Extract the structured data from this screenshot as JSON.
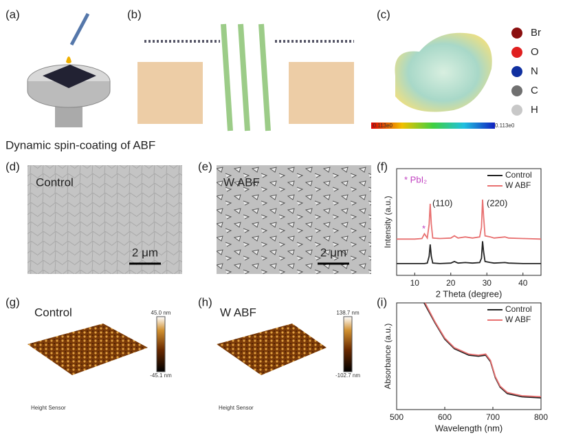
{
  "panels": {
    "a": {
      "label": "(a)",
      "caption": "Dynamic spin-coating of ABF"
    },
    "b": {
      "label": "(b)"
    },
    "c": {
      "label": "(c)",
      "atoms": [
        "Br",
        "O",
        "N",
        "C",
        "H"
      ],
      "atom_colors": [
        "#8b1010",
        "#e02020",
        "#1030a0",
        "#707070",
        "#c8c8c8"
      ],
      "scale_min": "-0.113e0",
      "scale_max": "0.113e0"
    },
    "d": {
      "label": "(d)",
      "title": "Control",
      "scale_bar": "2 μm"
    },
    "e": {
      "label": "(e)",
      "title": "W ABF",
      "scale_bar": "2 μm"
    },
    "f": {
      "label": "(f)"
    },
    "g": {
      "label": "(g)",
      "title": "Control",
      "scale_max": "45.0 nm",
      "scale_min": "-45.1 nm",
      "caption": "Height Sensor"
    },
    "h": {
      "label": "(h)",
      "title": "W ABF",
      "scale_max": "138.7 nm",
      "scale_min": "-102.7 nm",
      "caption": "Height Sensor"
    },
    "i": {
      "label": "(i)"
    }
  },
  "chart_data": [
    {
      "type": "line",
      "x_label": "2 Theta (degree)",
      "y_label": "Intensity (a.u.)",
      "xlim": [
        5,
        45
      ],
      "ylim": [
        0,
        100
      ],
      "xticks": [
        10,
        20,
        30,
        40
      ],
      "legend": "upper right",
      "annotations": [
        "* PbI₂",
        "*",
        "(110)",
        "(220)"
      ],
      "series": [
        {
          "name": "Control",
          "color": "#222222",
          "x": [
            5,
            10,
            12,
            12.7,
            13.5,
            14,
            14.3,
            14.6,
            15,
            17,
            20,
            21,
            22,
            24,
            26,
            28,
            28.5,
            28.8,
            29.1,
            29.5,
            31,
            32,
            35,
            36,
            40,
            45
          ],
          "values": [
            11,
            11,
            11,
            11,
            11.5,
            18,
            29,
            18,
            11.5,
            11,
            11.5,
            13,
            11.5,
            12,
            11.5,
            12,
            16,
            32,
            22,
            13,
            12,
            11.5,
            12,
            11.5,
            11,
            11
          ]
        },
        {
          "name": "W ABF",
          "color": "#e87070",
          "x": [
            5,
            10,
            12,
            12.7,
            13.5,
            14,
            14.3,
            14.6,
            15,
            17,
            20,
            21,
            22,
            24,
            26,
            28,
            28.5,
            28.8,
            29.1,
            29.5,
            31,
            32,
            35,
            36,
            40,
            45
          ],
          "values": [
            34,
            34,
            34.5,
            39,
            35,
            48,
            67,
            48,
            35,
            34.5,
            35,
            37,
            35,
            36,
            35,
            36,
            45,
            71,
            55,
            37,
            36,
            35,
            36,
            35,
            34.5,
            34
          ]
        }
      ]
    },
    {
      "type": "line",
      "x_label": "Wavelength (nm)",
      "y_label": "Absorbance (a.u.)",
      "xlim": [
        500,
        800
      ],
      "ylim": [
        0,
        100
      ],
      "xticks": [
        500,
        600,
        700,
        800
      ],
      "legend": "upper right",
      "series": [
        {
          "name": "Control",
          "color": "#222222",
          "x": [
            557,
            580,
            600,
            620,
            650,
            670,
            685,
            695,
            705,
            715,
            730,
            760,
            800
          ],
          "values": [
            100,
            81,
            66,
            57,
            51,
            50,
            51,
            45,
            30,
            21,
            15,
            12,
            11
          ]
        },
        {
          "name": "W ABF",
          "color": "#e87070",
          "x": [
            559,
            580,
            600,
            620,
            650,
            670,
            685,
            695,
            705,
            715,
            730,
            760,
            800
          ],
          "values": [
            100,
            82,
            67,
            58,
            52,
            51,
            52,
            46,
            31,
            22,
            16,
            13,
            12
          ]
        }
      ]
    }
  ]
}
